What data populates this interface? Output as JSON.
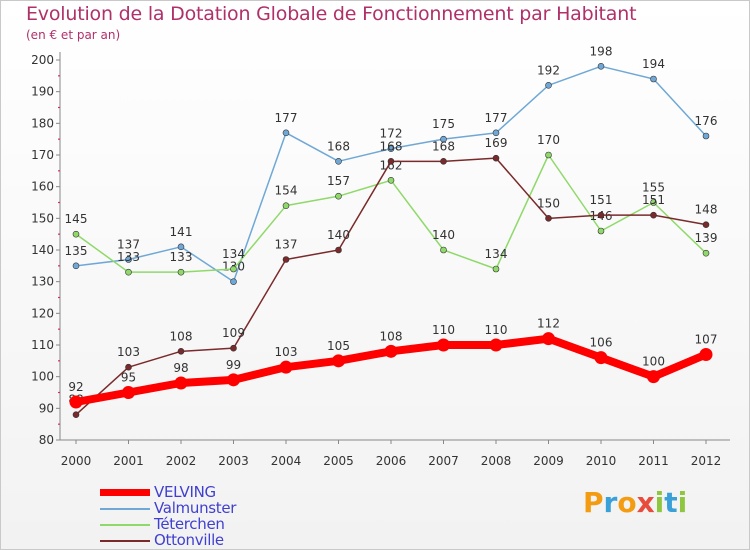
{
  "header": {
    "title": "Evolution de la Dotation Globale de Fonctionnement par Habitant",
    "subtitle": "(en € et par an)"
  },
  "logo": {
    "letters": [
      "P",
      "r",
      "o",
      "x",
      "i",
      "t",
      "i"
    ],
    "colors": [
      "#f39c12",
      "#3aa0d8",
      "#f39c12",
      "#e74c3c",
      "#8fc63f",
      "#3aa0d8",
      "#8fc63f"
    ]
  },
  "chart_data": {
    "type": "line",
    "title": "Evolution de la Dotation Globale de Fonctionnement par Habitant",
    "subtitle": "(en € et par an)",
    "x": [
      2000,
      2001,
      2002,
      2003,
      2004,
      2005,
      2006,
      2007,
      2008,
      2009,
      2010,
      2011,
      2012
    ],
    "ylim": [
      80,
      200
    ],
    "yticks": [
      80,
      90,
      100,
      110,
      120,
      130,
      140,
      150,
      160,
      170,
      180,
      190,
      200
    ],
    "grid": false,
    "legend_position": "bottom-left",
    "series": [
      {
        "name": "VELVING",
        "color": "#ff0000",
        "values": [
          92,
          95,
          98,
          99,
          103,
          105,
          108,
          110,
          110,
          112,
          106,
          100,
          107
        ]
      },
      {
        "name": "Valmunster",
        "color": "#6fa8d6",
        "values": [
          135,
          137,
          141,
          130,
          177,
          168,
          172,
          175,
          177,
          192,
          198,
          194,
          176
        ]
      },
      {
        "name": "Téterchen",
        "color": "#8fd96a",
        "values": [
          145,
          133,
          133,
          134,
          154,
          157,
          162,
          140,
          134,
          170,
          146,
          155,
          139
        ]
      },
      {
        "name": "Ottonville",
        "color": "#7a2a2a",
        "values": [
          88,
          103,
          108,
          109,
          137,
          140,
          168,
          168,
          169,
          150,
          151,
          151,
          148
        ]
      }
    ]
  }
}
